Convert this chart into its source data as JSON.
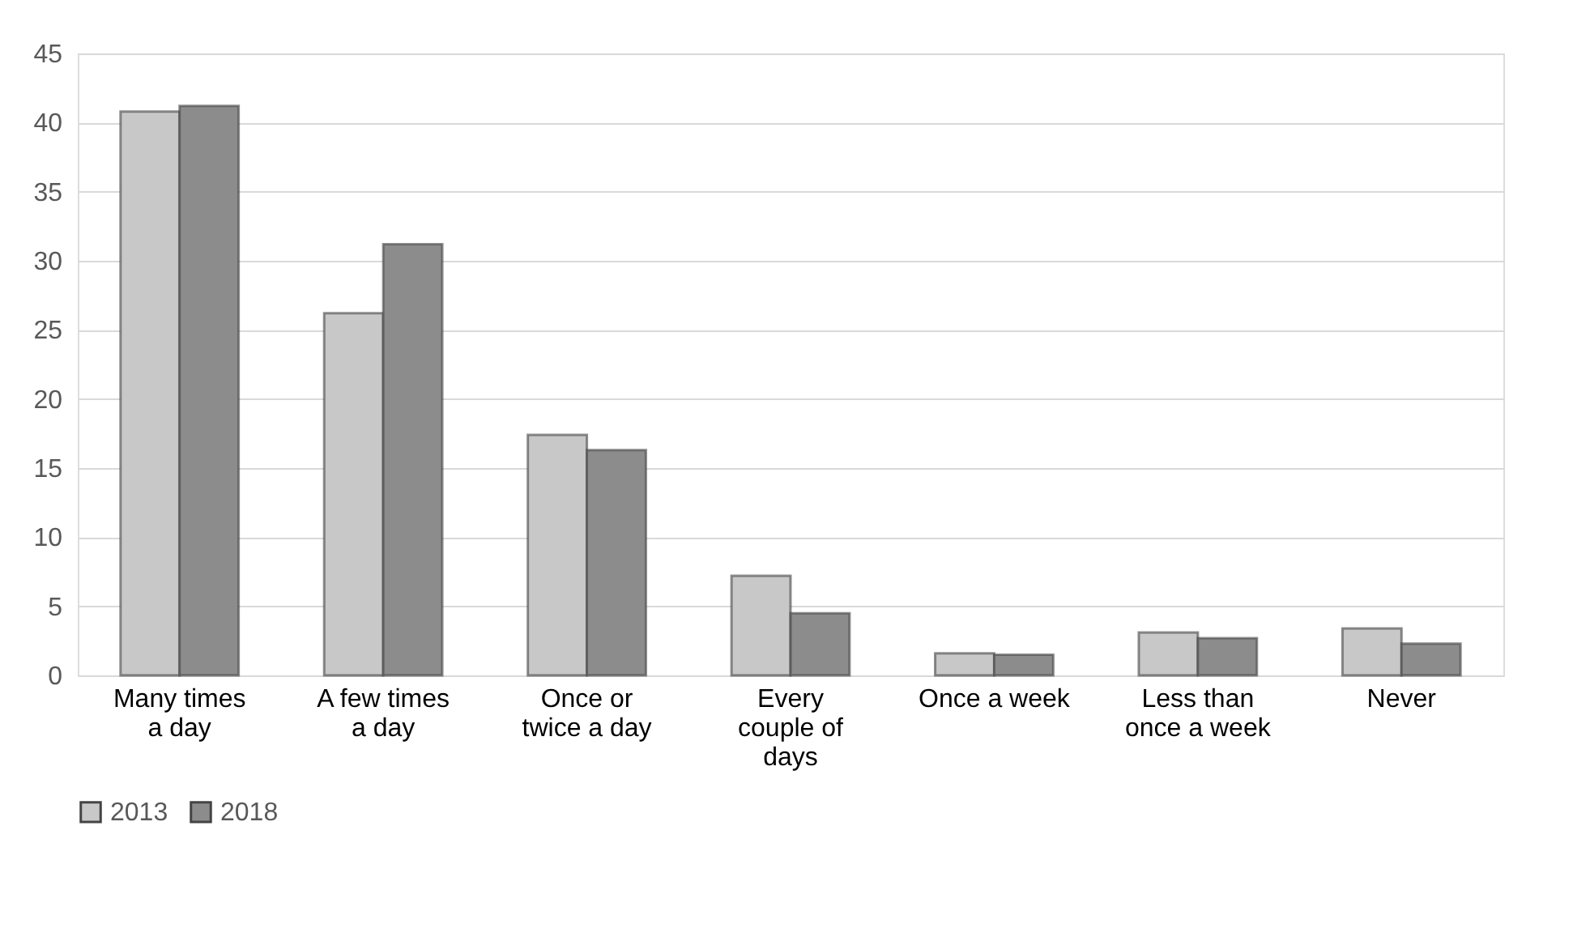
{
  "chart_data": {
    "type": "bar",
    "categories": [
      "Many times a day",
      "A few times a day",
      "Once or twice a day",
      "Every couple of days",
      "Once a week",
      "Less than once a week",
      "Never"
    ],
    "series": [
      {
        "name": "2013",
        "color": "#c8c8c8",
        "values": [
          40.8,
          26.2,
          17.4,
          7.2,
          1.6,
          3.1,
          3.4
        ]
      },
      {
        "name": "2018",
        "color": "#8c8c8c",
        "values": [
          41.2,
          31.2,
          16.3,
          4.5,
          1.5,
          2.7,
          2.3
        ]
      }
    ],
    "ylim": [
      0,
      45
    ],
    "yticks": [
      0,
      5,
      10,
      15,
      20,
      25,
      30,
      35,
      40,
      45
    ],
    "grid": "y",
    "legend": "bottom"
  }
}
